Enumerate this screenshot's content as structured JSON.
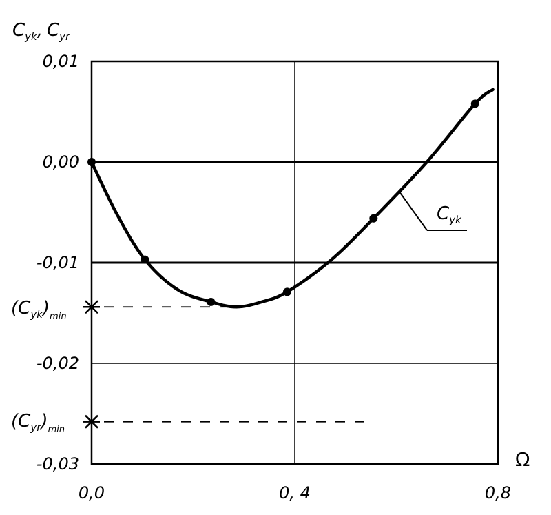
{
  "chart_data": {
    "type": "line",
    "x_axis": {
      "label": "Ω",
      "ticks": [
        {
          "value": 0.0,
          "label": "0,0"
        },
        {
          "value": 0.4,
          "label": "0, 4"
        },
        {
          "value": 0.8,
          "label": "0,8"
        }
      ],
      "range": [
        0.0,
        0.8
      ]
    },
    "y_axis": {
      "label_parts": {
        "c1": "C",
        "s1": "yk",
        "sep": ",",
        "c2": "C",
        "s2": "yr"
      },
      "ticks": [
        {
          "value": 0.01,
          "label": "0,01"
        },
        {
          "value": 0.0,
          "label": "0,00"
        },
        {
          "value": -0.01,
          "label": "-0,01"
        },
        {
          "value": -0.02,
          "label": "-0,02"
        },
        {
          "value": -0.03,
          "label": "-0,03"
        }
      ],
      "range": [
        -0.03,
        0.01
      ]
    },
    "grid": true,
    "series": [
      {
        "name": "C_yk",
        "label_parts": {
          "c": "C",
          "s": "yk"
        },
        "points": [
          {
            "x": 0.0,
            "y": 0.0
          },
          {
            "x": 0.105,
            "y": -0.0097
          },
          {
            "x": 0.235,
            "y": -0.0139
          },
          {
            "x": 0.385,
            "y": -0.0129
          },
          {
            "x": 0.555,
            "y": -0.0056
          },
          {
            "x": 0.755,
            "y": 0.0058
          }
        ],
        "curve": [
          {
            "x": 0.0,
            "y": 0.0
          },
          {
            "x": 0.05,
            "y": -0.0052
          },
          {
            "x": 0.105,
            "y": -0.0097
          },
          {
            "x": 0.17,
            "y": -0.0127
          },
          {
            "x": 0.235,
            "y": -0.0139
          },
          {
            "x": 0.285,
            "y": -0.0144
          },
          {
            "x": 0.335,
            "y": -0.0139
          },
          {
            "x": 0.385,
            "y": -0.0129
          },
          {
            "x": 0.47,
            "y": -0.0098
          },
          {
            "x": 0.555,
            "y": -0.0056
          },
          {
            "x": 0.66,
            "y": 0.0
          },
          {
            "x": 0.755,
            "y": 0.0058
          },
          {
            "x": 0.79,
            "y": 0.0072
          }
        ]
      }
    ],
    "markers": [
      {
        "name": "Cyk_min",
        "y": -0.0144,
        "label_parts": {
          "open": "(",
          "c": "C",
          "s": "yk",
          "close": ")",
          "sub": "min"
        },
        "dash_to_x": 0.27
      },
      {
        "name": "Cyr_min",
        "y": -0.0258,
        "label_parts": {
          "open": "(",
          "c": "C",
          "s": "yr",
          "close": ")",
          "sub": "min"
        },
        "dash_to_x": 0.54
      }
    ]
  }
}
